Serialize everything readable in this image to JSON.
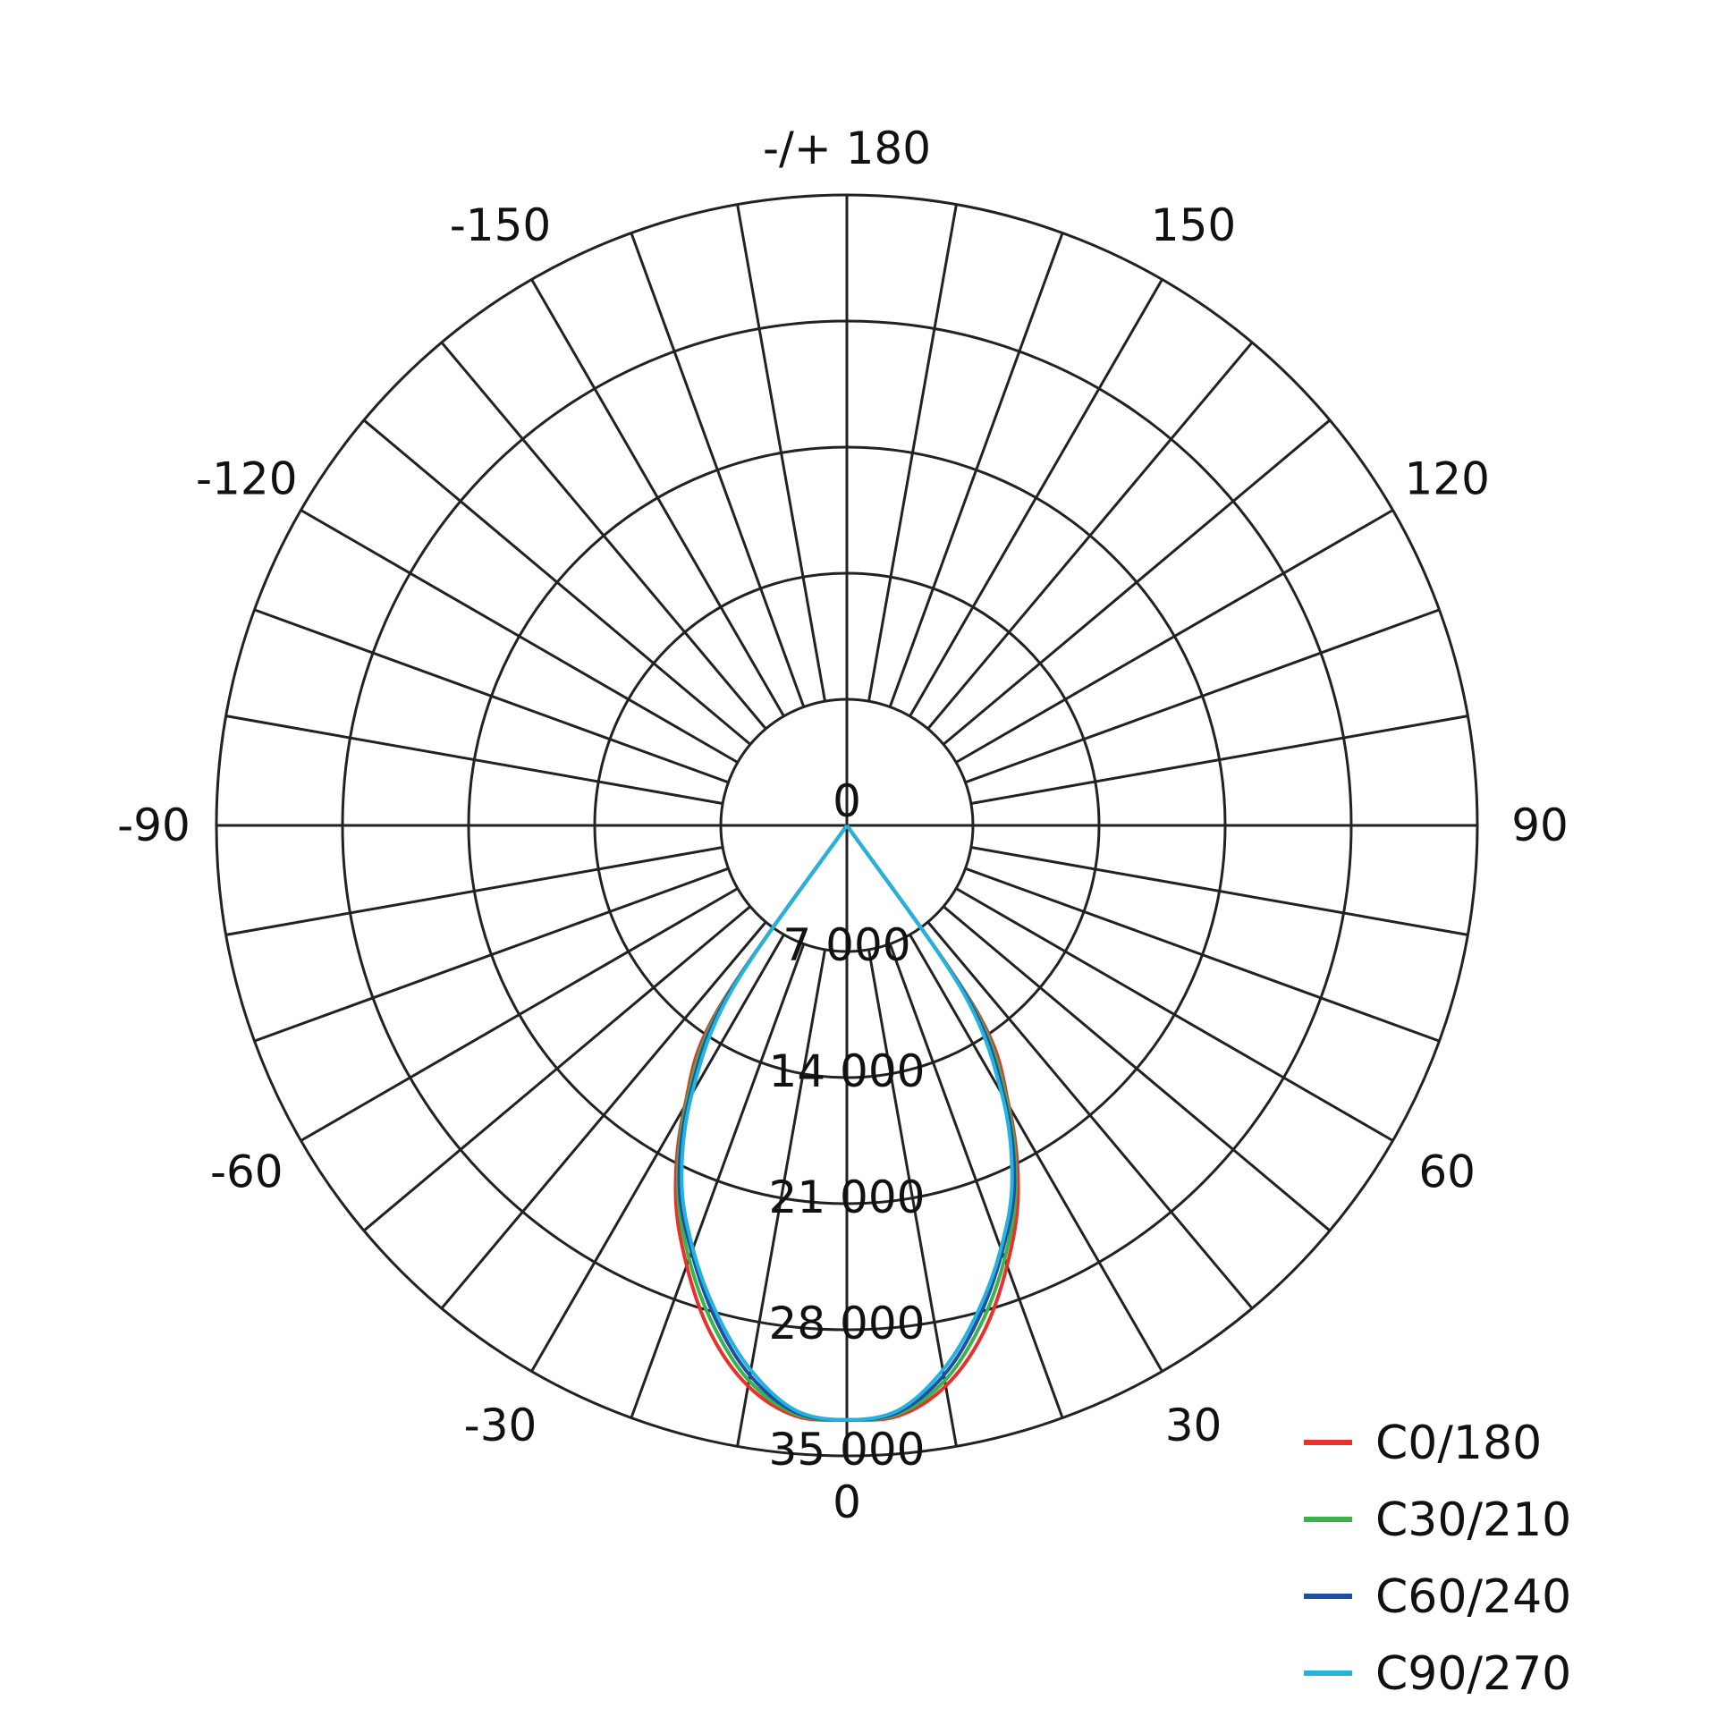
{
  "chart_data": {
    "type": "polar",
    "angle_ticks": [
      {
        "angle": 180,
        "label": "-/+ 180"
      },
      {
        "angle": 150,
        "label": "150"
      },
      {
        "angle": 120,
        "label": "120"
      },
      {
        "angle": 90,
        "label": "90"
      },
      {
        "angle": 60,
        "label": "60"
      },
      {
        "angle": 30,
        "label": "30"
      },
      {
        "angle": 0,
        "label": "0"
      },
      {
        "angle": -30,
        "label": "-30"
      },
      {
        "angle": -60,
        "label": "-60"
      },
      {
        "angle": -90,
        "label": "-90"
      },
      {
        "angle": -120,
        "label": "-120"
      },
      {
        "angle": -150,
        "label": "-150"
      }
    ],
    "radial_ticks": [
      {
        "value": 0,
        "label": "0"
      },
      {
        "value": 7000,
        "label": "7 000"
      },
      {
        "value": 14000,
        "label": "14 000"
      },
      {
        "value": 21000,
        "label": "21 000"
      },
      {
        "value": 28000,
        "label": "28 000"
      },
      {
        "value": 35000,
        "label": "35 000"
      }
    ],
    "radial_max": 35000,
    "spoke_step_deg": 10,
    "grid": true,
    "legend_position": "bottom-right",
    "series": [
      {
        "name": "C0/180",
        "color": "#e8302c",
        "points": [
          [
            -40,
            0
          ],
          [
            -35,
            12500
          ],
          [
            -30,
            18000
          ],
          [
            -25,
            22500
          ],
          [
            -20,
            26000
          ],
          [
            -15,
            29200
          ],
          [
            -10,
            31600
          ],
          [
            -5,
            32900
          ],
          [
            0,
            33000
          ],
          [
            5,
            32900
          ],
          [
            10,
            31600
          ],
          [
            15,
            29200
          ],
          [
            20,
            26000
          ],
          [
            25,
            22500
          ],
          [
            30,
            18000
          ],
          [
            35,
            12500
          ],
          [
            40,
            0
          ]
        ]
      },
      {
        "name": "C30/210",
        "color": "#3cb34a",
        "points": [
          [
            -40,
            0
          ],
          [
            -35,
            12000
          ],
          [
            -30,
            17800
          ],
          [
            -25,
            22200
          ],
          [
            -20,
            25600
          ],
          [
            -15,
            28700
          ],
          [
            -10,
            31300
          ],
          [
            -5,
            32800
          ],
          [
            0,
            33000
          ],
          [
            5,
            32800
          ],
          [
            10,
            31300
          ],
          [
            15,
            28700
          ],
          [
            20,
            25600
          ],
          [
            25,
            22200
          ],
          [
            30,
            17800
          ],
          [
            35,
            12000
          ],
          [
            40,
            0
          ]
        ]
      },
      {
        "name": "C60/240",
        "color": "#1f4fa3",
        "points": [
          [
            -40,
            0
          ],
          [
            -35,
            11500
          ],
          [
            -30,
            17500
          ],
          [
            -25,
            22000
          ],
          [
            -20,
            25200
          ],
          [
            -15,
            28300
          ],
          [
            -10,
            31000
          ],
          [
            -5,
            32700
          ],
          [
            0,
            33000
          ],
          [
            5,
            32700
          ],
          [
            10,
            31000
          ],
          [
            15,
            28300
          ],
          [
            20,
            25200
          ],
          [
            25,
            22000
          ],
          [
            30,
            17500
          ],
          [
            35,
            11500
          ],
          [
            40,
            0
          ]
        ]
      },
      {
        "name": "C90/270",
        "color": "#23b3dc",
        "points": [
          [
            -40,
            0
          ],
          [
            -35,
            11000
          ],
          [
            -30,
            17200
          ],
          [
            -25,
            21700
          ],
          [
            -20,
            25000
          ],
          [
            -15,
            28000
          ],
          [
            -10,
            30700
          ],
          [
            -5,
            32600
          ],
          [
            0,
            33000
          ],
          [
            5,
            32600
          ],
          [
            10,
            30700
          ],
          [
            15,
            28000
          ],
          [
            20,
            25000
          ],
          [
            25,
            21700
          ],
          [
            30,
            17200
          ],
          [
            35,
            11000
          ],
          [
            40,
            0
          ]
        ]
      }
    ]
  }
}
